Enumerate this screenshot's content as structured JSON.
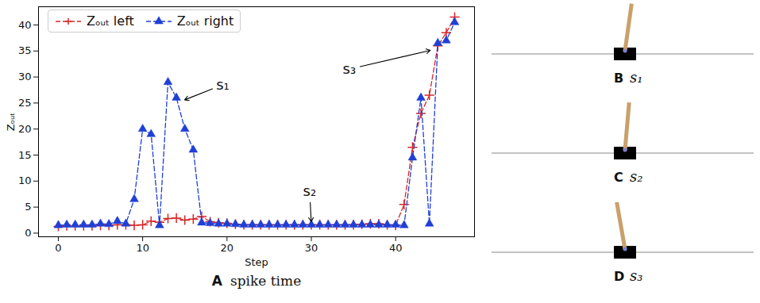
{
  "chart_data": {
    "type": "line",
    "panel": "A",
    "caption": "spike time",
    "xlabel": "Step",
    "ylabel": "Zₒᵤₜ",
    "xlim": [
      -2.35,
      49.35
    ],
    "xticks": [
      0,
      10,
      20,
      30,
      40
    ],
    "ylim": [
      -0.7,
      43.5
    ],
    "yticks": [
      0,
      5,
      10,
      15,
      20,
      25,
      30,
      35,
      40
    ],
    "grid": false,
    "legend": "upper left",
    "x": [
      0,
      1,
      2,
      3,
      4,
      5,
      6,
      7,
      8,
      9,
      10,
      11,
      12,
      13,
      14,
      15,
      16,
      17,
      18,
      19,
      20,
      21,
      22,
      23,
      24,
      25,
      26,
      27,
      28,
      29,
      30,
      31,
      32,
      33,
      34,
      35,
      36,
      37,
      38,
      39,
      40,
      41,
      42,
      43,
      44,
      45,
      46,
      47
    ],
    "series": [
      {
        "name": "Zₒᵤₜ left",
        "color": "#d62728",
        "marker": "plus",
        "line_style": "dashed",
        "values": [
          1.3,
          1.4,
          1.4,
          1.4,
          1.4,
          1.5,
          1.5,
          1.6,
          1.6,
          1.5,
          1.6,
          2.3,
          2.1,
          2.8,
          2.9,
          2.5,
          2.7,
          3.2,
          2.2,
          2.0,
          1.9,
          1.7,
          1.6,
          1.6,
          1.6,
          1.6,
          1.6,
          1.6,
          1.6,
          1.6,
          1.6,
          1.6,
          1.6,
          1.6,
          1.6,
          1.6,
          1.7,
          1.8,
          1.8,
          1.6,
          1.5,
          5.5,
          16.5,
          23,
          26.5,
          36,
          38.5,
          41.5
        ]
      },
      {
        "name": "Zₒᵤₜ right",
        "color": "#1f3fd6",
        "marker": "triangle",
        "line_style": "dashed",
        "values": [
          1.5,
          1.6,
          1.6,
          1.6,
          1.6,
          1.8,
          1.7,
          2.3,
          1.8,
          6.5,
          20,
          19,
          1.5,
          29,
          26,
          20,
          16,
          2.0,
          1.9,
          1.8,
          1.8,
          1.7,
          1.6,
          1.6,
          1.6,
          1.6,
          1.6,
          1.6,
          1.6,
          1.6,
          1.6,
          1.6,
          1.6,
          1.6,
          1.6,
          1.6,
          1.6,
          1.6,
          1.6,
          1.6,
          1.6,
          1.5,
          14.5,
          26,
          1.8,
          36.5,
          37,
          40.5
        ]
      }
    ],
    "annotations": [
      {
        "text": "s₁",
        "xy": [
          14.8,
          25.5
        ],
        "xytext": [
          19.5,
          28.5
        ]
      },
      {
        "text": "s₂",
        "xy": [
          30,
          1.9
        ],
        "xytext": [
          29.8,
          8
        ]
      },
      {
        "text": "s₃",
        "xy": [
          44.3,
          35.2
        ],
        "xytext": [
          34.5,
          31.5
        ]
      }
    ]
  },
  "panels": [
    {
      "letter": "B",
      "label": "s₁"
    },
    {
      "letter": "C",
      "label": "s₂"
    },
    {
      "letter": "D",
      "label": "s₃"
    }
  ]
}
